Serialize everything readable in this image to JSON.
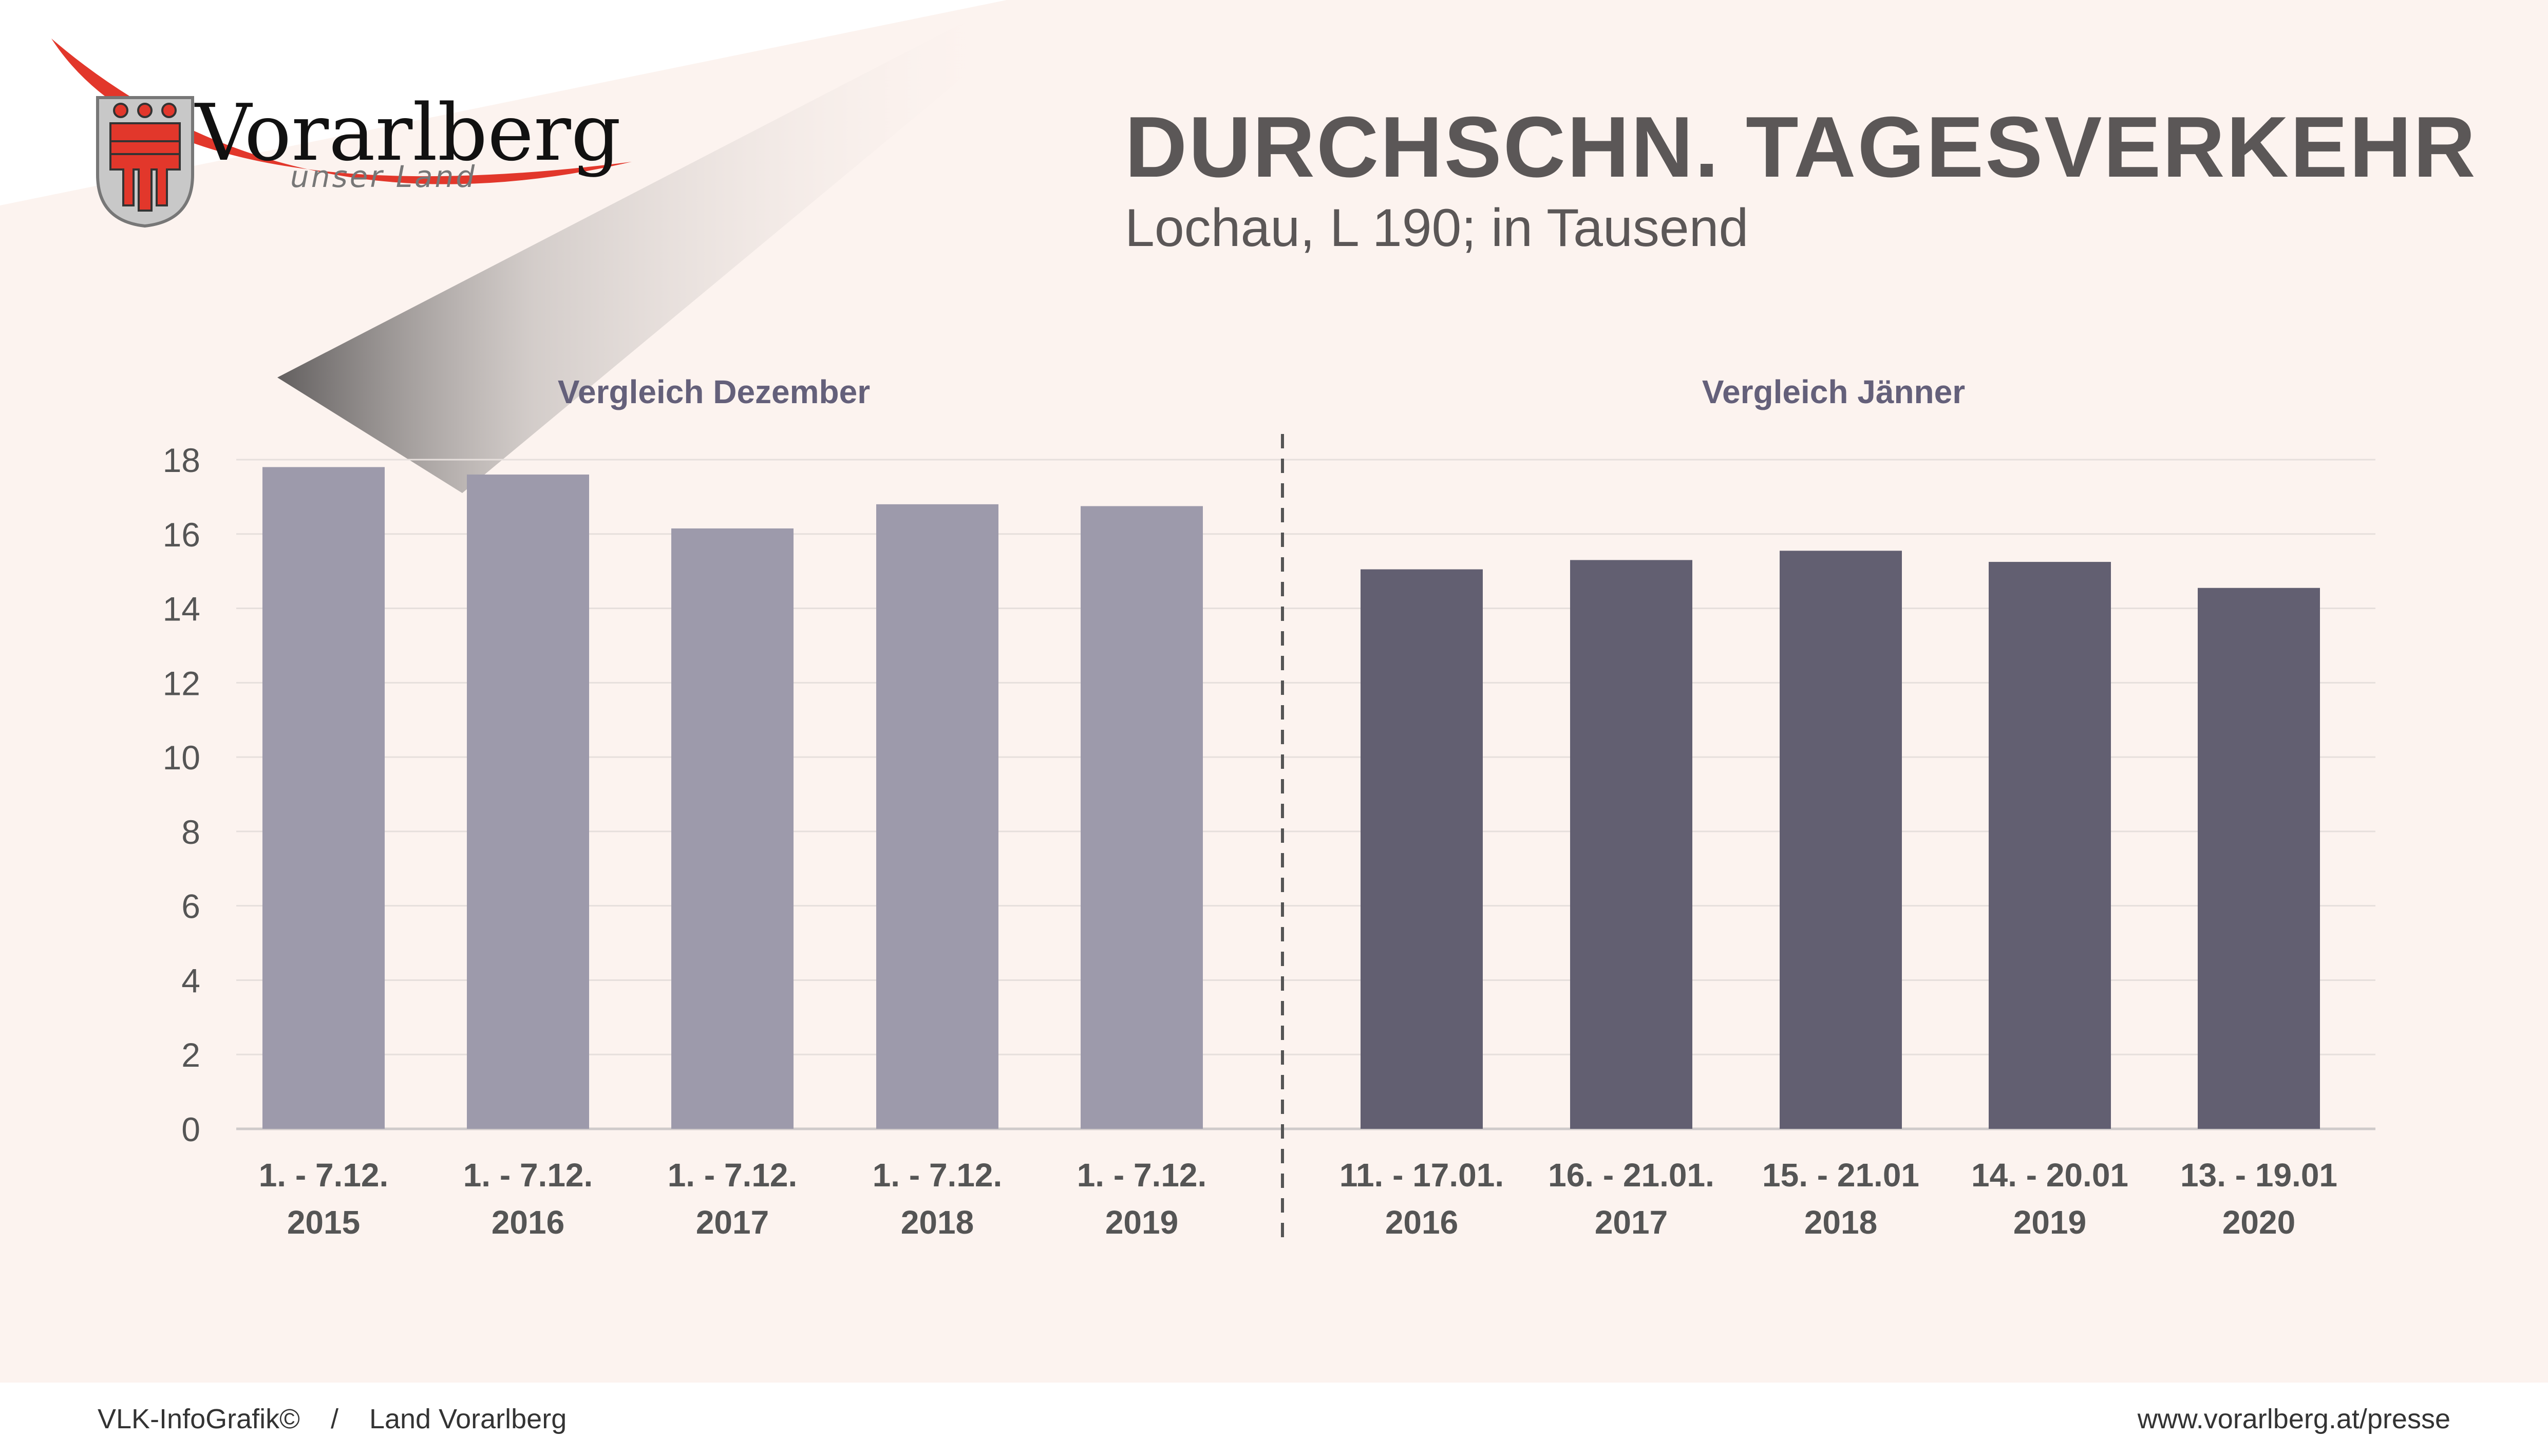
{
  "header": {
    "title": "DURCHSCHN. TAGESVERKEHR",
    "subtitle": "Lochau, L 190; in Tausend"
  },
  "logo": {
    "name": "Vorarlberg",
    "tagline": "unser Land"
  },
  "footer": {
    "credit": "VLK-InfoGrafik©",
    "separator": "/",
    "publisher": "Land Vorarlberg",
    "url": "www.vorarlberg.at/presse"
  },
  "colors": {
    "background": "#fcf3ef",
    "title_text": "#5b5757",
    "bar_december": "#9d9aab",
    "bar_january": "#625f71",
    "logo_red": "#e2372b"
  },
  "chart_data": {
    "type": "bar",
    "ylim": [
      0,
      18
    ],
    "yticks": [
      0,
      2,
      4,
      6,
      8,
      10,
      12,
      14,
      16,
      18
    ],
    "grid": true,
    "groups": [
      {
        "name": "Vergleich Dezember",
        "categories": [
          [
            "1. - 7.12.",
            "2015"
          ],
          [
            "1. - 7.12.",
            "2016"
          ],
          [
            "1. - 7.12.",
            "2017"
          ],
          [
            "1. - 7.12.",
            "2018"
          ],
          [
            "1. - 7.12.",
            "2019"
          ]
        ],
        "values": [
          17.8,
          17.6,
          16.15,
          16.8,
          16.75
        ]
      },
      {
        "name": "Vergleich Jänner",
        "categories": [
          [
            "11. - 17.01.",
            "2016"
          ],
          [
            "16. - 21.01.",
            "2017"
          ],
          [
            "15. - 21.01",
            "2018"
          ],
          [
            "14. - 20.01",
            "2019"
          ],
          [
            "13. - 19.01",
            "2020"
          ]
        ],
        "values": [
          15.05,
          15.3,
          15.55,
          15.25,
          14.55
        ]
      }
    ]
  }
}
